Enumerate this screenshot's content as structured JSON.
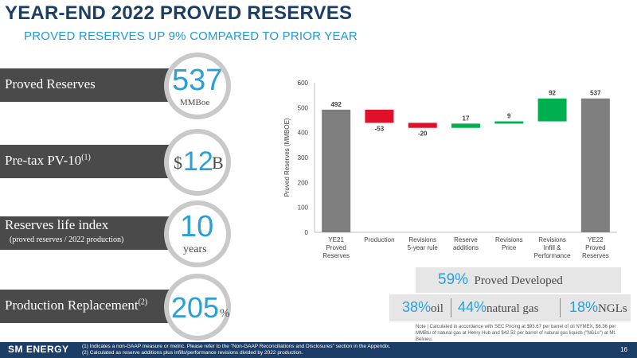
{
  "header": {
    "title": "YEAR-END 2022 PROVED RESERVES",
    "subtitle": "PROVED RESERVES UP 9% COMPARED TO PRIOR YEAR"
  },
  "kpis": [
    {
      "label": "Proved Reserves",
      "value": "537",
      "unit": "MMBoe"
    },
    {
      "label": "Pre-tax PV-10",
      "footnote": "(1)",
      "prefix": "$",
      "value": "12",
      "unit": "B"
    },
    {
      "label": "Reserves life index",
      "sublabel": "(proved reserves / 2022 production)",
      "value": "10",
      "unit": "years"
    },
    {
      "label": "Production Replacement",
      "footnote": "(2)",
      "value": "205",
      "unit": "%"
    }
  ],
  "chart_data": {
    "type": "waterfall",
    "ylabel": "Proved Reserves (MMBOE)",
    "ylim": [
      0,
      600
    ],
    "yticks": [
      "0",
      "100",
      "200",
      "300",
      "400",
      "500",
      "600"
    ],
    "categories": [
      [
        "YE21",
        "Proved",
        "Reserves"
      ],
      [
        "Production"
      ],
      [
        "Revisions",
        "5-year rule"
      ],
      [
        "Reserve",
        "additions"
      ],
      [
        "Revisions",
        "Price"
      ],
      [
        "Revisions",
        "Infill &",
        "Performance"
      ],
      [
        "YE22",
        "Proved",
        "Reserves"
      ]
    ],
    "values": [
      492,
      -53,
      -20,
      17,
      9,
      92,
      537
    ],
    "labels": [
      "492",
      "-53",
      "-20",
      "17",
      "9",
      "92",
      "537"
    ],
    "kinds": [
      "total",
      "delta",
      "delta",
      "delta",
      "delta",
      "delta",
      "total"
    ],
    "colors": {
      "total": "#7f7f7f",
      "increase": "#00b050",
      "decrease": "#e0102a",
      "axis": "#bfbfbf",
      "text": "#404040"
    }
  },
  "stats": {
    "proved_developed": {
      "value": "59%",
      "label": "Proved Developed"
    },
    "oil": {
      "value": "38%",
      "label": "oil"
    },
    "gas": {
      "value": "44%",
      "label": "natural gas"
    },
    "ngl": {
      "value": "18%",
      "label": "NGLs"
    }
  },
  "note": "Note | Calculated in accordance with SEC Pricing at $93.67 per barrel of oil NYMEX, $6.36 per MMBtu of natural gas at Henry Hub and $42.52 per barrel of natural gas liquids (\"NGLs\") at Mt. Belvieu.",
  "footer": {
    "logo": "SM ENERGY",
    "footnote1": "(1)   Indicates a non-GAAP measure or metric. Please refer to the \"Non-GAAP Reconciliations and Disclosures\" section in the Appendix.",
    "footnote2": "(2)   Calculated as reserve additions plus infills/performance revisions divided by 2022 production.",
    "page": "16"
  }
}
